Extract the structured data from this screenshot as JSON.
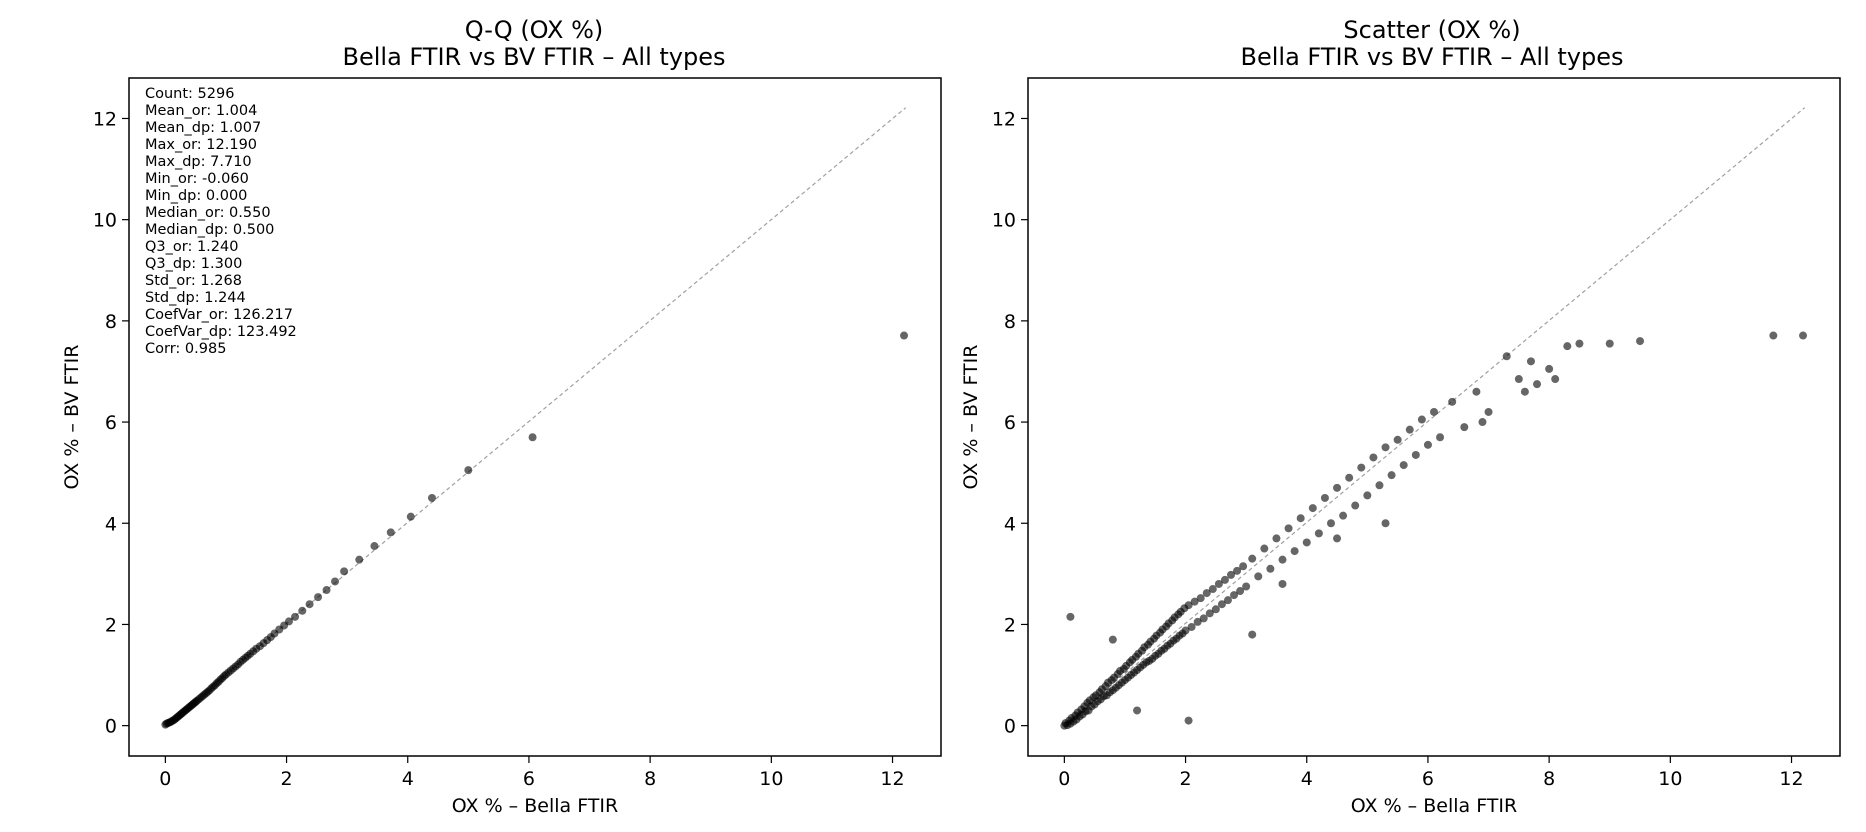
{
  "chart_data": [
    {
      "type": "scatter",
      "title": "Q-Q (OX %)",
      "subtitle": "Bella FTIR vs BV FTIR – All types",
      "xlabel": "OX % – Bella FTIR",
      "ylabel": "OX % – BV FTIR",
      "xlim": [
        -0.6,
        12.8
      ],
      "ylim": [
        -0.6,
        12.8
      ],
      "xticks": [
        0,
        2,
        4,
        6,
        8,
        10,
        12
      ],
      "yticks": [
        0,
        2,
        4,
        6,
        8,
        10,
        12
      ],
      "grid": false,
      "reference_line": {
        "from": [
          0,
          0
        ],
        "to": [
          12.19,
          12.19
        ],
        "style": "dashed",
        "color": "#a0a0a0"
      },
      "stats_box": [
        "Count: 5296",
        "Mean_or: 1.004",
        "Mean_dp: 1.007",
        "Max_or: 12.190",
        "Max_dp: 7.710",
        "Min_or: -0.060",
        "Min_dp: 0.000",
        "Median_or: 0.550",
        "Median_dp: 0.500",
        "Q3_or: 1.240",
        "Q3_dp: 1.300",
        "Std_or: 1.268",
        "Std_dp: 1.244",
        "CoefVar_or: 126.217",
        "CoefVar_dp: 123.492",
        "Corr: 0.985"
      ],
      "point_color": "#000000",
      "point_alpha": 0.6,
      "points": [
        [
          0.0,
          0.02
        ],
        [
          0.02,
          0.04
        ],
        [
          0.04,
          0.05
        ],
        [
          0.06,
          0.06
        ],
        [
          0.08,
          0.07
        ],
        [
          0.1,
          0.08
        ],
        [
          0.12,
          0.1
        ],
        [
          0.14,
          0.11
        ],
        [
          0.16,
          0.13
        ],
        [
          0.18,
          0.15
        ],
        [
          0.2,
          0.17
        ],
        [
          0.22,
          0.19
        ],
        [
          0.24,
          0.21
        ],
        [
          0.26,
          0.23
        ],
        [
          0.28,
          0.25
        ],
        [
          0.3,
          0.27
        ],
        [
          0.32,
          0.29
        ],
        [
          0.34,
          0.31
        ],
        [
          0.36,
          0.33
        ],
        [
          0.38,
          0.35
        ],
        [
          0.4,
          0.37
        ],
        [
          0.42,
          0.39
        ],
        [
          0.44,
          0.41
        ],
        [
          0.46,
          0.43
        ],
        [
          0.48,
          0.45
        ],
        [
          0.5,
          0.47
        ],
        [
          0.52,
          0.49
        ],
        [
          0.55,
          0.52
        ],
        [
          0.58,
          0.55
        ],
        [
          0.61,
          0.58
        ],
        [
          0.64,
          0.61
        ],
        [
          0.67,
          0.64
        ],
        [
          0.7,
          0.67
        ],
        [
          0.73,
          0.7
        ],
        [
          0.76,
          0.74
        ],
        [
          0.79,
          0.77
        ],
        [
          0.82,
          0.8
        ],
        [
          0.85,
          0.84
        ],
        [
          0.88,
          0.87
        ],
        [
          0.91,
          0.91
        ],
        [
          0.94,
          0.94
        ],
        [
          0.97,
          0.98
        ],
        [
          1.0,
          1.01
        ],
        [
          1.04,
          1.05
        ],
        [
          1.08,
          1.09
        ],
        [
          1.12,
          1.13
        ],
        [
          1.16,
          1.17
        ],
        [
          1.2,
          1.21
        ],
        [
          1.24,
          1.26
        ],
        [
          1.28,
          1.3
        ],
        [
          1.32,
          1.34
        ],
        [
          1.36,
          1.38
        ],
        [
          1.4,
          1.42
        ],
        [
          1.45,
          1.47
        ],
        [
          1.5,
          1.52
        ],
        [
          1.56,
          1.57
        ],
        [
          1.62,
          1.63
        ],
        [
          1.68,
          1.69
        ],
        [
          1.74,
          1.75
        ],
        [
          1.8,
          1.82
        ],
        [
          1.88,
          1.9
        ],
        [
          1.96,
          1.98
        ],
        [
          2.04,
          2.06
        ],
        [
          2.14,
          2.15
        ],
        [
          2.26,
          2.27
        ],
        [
          2.38,
          2.4
        ],
        [
          2.52,
          2.54
        ],
        [
          2.66,
          2.68
        ],
        [
          2.8,
          2.85
        ],
        [
          2.95,
          3.05
        ],
        [
          3.2,
          3.28
        ],
        [
          3.45,
          3.55
        ],
        [
          3.72,
          3.82
        ],
        [
          4.05,
          4.13
        ],
        [
          4.4,
          4.5
        ],
        [
          5.0,
          5.05
        ],
        [
          6.06,
          5.7
        ],
        [
          12.19,
          7.71
        ]
      ]
    },
    {
      "type": "scatter",
      "title": "Scatter (OX %)",
      "subtitle": "Bella FTIR vs BV FTIR – All types",
      "xlabel": "OX % – Bella FTIR",
      "ylabel": "OX % – BV FTIR",
      "xlim": [
        -0.6,
        12.8
      ],
      "ylim": [
        -0.6,
        12.8
      ],
      "xticks": [
        0,
        2,
        4,
        6,
        8,
        10,
        12
      ],
      "yticks": [
        0,
        2,
        4,
        6,
        8,
        10,
        12
      ],
      "grid": false,
      "reference_line": {
        "from": [
          0,
          0
        ],
        "to": [
          12.19,
          12.19
        ],
        "style": "dashed",
        "color": "#a0a0a0"
      },
      "point_color": "#000000",
      "point_alpha": 0.6,
      "n_points": 5296,
      "points": [
        [
          0.0,
          0.0
        ],
        [
          0.02,
          0.05
        ],
        [
          0.05,
          0.01
        ],
        [
          0.08,
          0.1
        ],
        [
          0.1,
          0.04
        ],
        [
          0.12,
          0.15
        ],
        [
          0.15,
          0.08
        ],
        [
          0.18,
          0.2
        ],
        [
          0.2,
          0.12
        ],
        [
          0.22,
          0.26
        ],
        [
          0.25,
          0.18
        ],
        [
          0.28,
          0.32
        ],
        [
          0.3,
          0.22
        ],
        [
          0.33,
          0.38
        ],
        [
          0.35,
          0.28
        ],
        [
          0.38,
          0.45
        ],
        [
          0.4,
          0.3
        ],
        [
          0.42,
          0.5
        ],
        [
          0.45,
          0.38
        ],
        [
          0.48,
          0.56
        ],
        [
          0.5,
          0.42
        ],
        [
          0.52,
          0.6
        ],
        [
          0.55,
          0.48
        ],
        [
          0.58,
          0.66
        ],
        [
          0.6,
          0.52
        ],
        [
          0.62,
          0.72
        ],
        [
          0.65,
          0.58
        ],
        [
          0.68,
          0.78
        ],
        [
          0.7,
          0.6
        ],
        [
          0.72,
          0.85
        ],
        [
          0.75,
          0.66
        ],
        [
          0.78,
          0.9
        ],
        [
          0.8,
          0.7
        ],
        [
          0.82,
          0.95
        ],
        [
          0.85,
          0.75
        ],
        [
          0.88,
          1.02
        ],
        [
          0.9,
          0.8
        ],
        [
          0.92,
          1.08
        ],
        [
          0.95,
          0.85
        ],
        [
          0.98,
          1.12
        ],
        [
          1.0,
          0.9
        ],
        [
          1.02,
          1.18
        ],
        [
          1.05,
          0.95
        ],
        [
          1.08,
          1.25
        ],
        [
          1.1,
          1.0
        ],
        [
          1.12,
          1.3
        ],
        [
          1.15,
          1.05
        ],
        [
          1.18,
          1.36
        ],
        [
          1.2,
          1.1
        ],
        [
          1.22,
          1.42
        ],
        [
          1.25,
          1.15
        ],
        [
          1.28,
          1.48
        ],
        [
          1.3,
          1.2
        ],
        [
          1.32,
          1.55
        ],
        [
          1.35,
          1.25
        ],
        [
          1.38,
          1.6
        ],
        [
          1.4,
          1.28
        ],
        [
          1.42,
          1.66
        ],
        [
          1.45,
          1.32
        ],
        [
          1.48,
          1.72
        ],
        [
          1.5,
          1.38
        ],
        [
          1.52,
          1.78
        ],
        [
          1.55,
          1.42
        ],
        [
          1.58,
          1.84
        ],
        [
          1.6,
          1.48
        ],
        [
          1.62,
          1.9
        ],
        [
          1.65,
          1.52
        ],
        [
          1.68,
          1.96
        ],
        [
          1.7,
          1.58
        ],
        [
          1.72,
          2.02
        ],
        [
          1.75,
          1.62
        ],
        [
          1.78,
          2.08
        ],
        [
          1.8,
          1.68
        ],
        [
          1.82,
          2.14
        ],
        [
          1.85,
          1.72
        ],
        [
          1.88,
          2.2
        ],
        [
          1.9,
          1.78
        ],
        [
          1.92,
          2.25
        ],
        [
          1.95,
          1.82
        ],
        [
          1.98,
          2.32
        ],
        [
          2.0,
          1.88
        ],
        [
          2.05,
          2.38
        ],
        [
          2.1,
          1.95
        ],
        [
          2.15,
          2.45
        ],
        [
          2.2,
          2.05
        ],
        [
          2.25,
          2.52
        ],
        [
          2.3,
          2.12
        ],
        [
          2.35,
          2.62
        ],
        [
          2.4,
          2.22
        ],
        [
          2.45,
          2.7
        ],
        [
          2.5,
          2.3
        ],
        [
          2.55,
          2.8
        ],
        [
          2.6,
          2.4
        ],
        [
          2.65,
          2.88
        ],
        [
          2.7,
          2.48
        ],
        [
          2.75,
          2.98
        ],
        [
          2.8,
          2.58
        ],
        [
          2.85,
          3.06
        ],
        [
          2.9,
          2.66
        ],
        [
          2.95,
          3.15
        ],
        [
          3.0,
          2.75
        ],
        [
          3.1,
          3.3
        ],
        [
          3.2,
          2.95
        ],
        [
          3.3,
          3.5
        ],
        [
          3.4,
          3.1
        ],
        [
          3.5,
          3.7
        ],
        [
          3.6,
          3.28
        ],
        [
          3.7,
          3.9
        ],
        [
          3.8,
          3.45
        ],
        [
          3.9,
          4.1
        ],
        [
          4.0,
          3.62
        ],
        [
          4.1,
          4.3
        ],
        [
          4.2,
          3.8
        ],
        [
          4.3,
          4.5
        ],
        [
          4.4,
          4.0
        ],
        [
          4.5,
          4.7
        ],
        [
          4.6,
          4.15
        ],
        [
          4.7,
          4.9
        ],
        [
          4.8,
          4.35
        ],
        [
          4.9,
          5.1
        ],
        [
          5.0,
          4.55
        ],
        [
          5.1,
          5.3
        ],
        [
          5.2,
          4.75
        ],
        [
          5.3,
          5.5
        ],
        [
          5.4,
          4.95
        ],
        [
          5.5,
          5.65
        ],
        [
          5.6,
          5.15
        ],
        [
          5.7,
          5.85
        ],
        [
          5.8,
          5.35
        ],
        [
          5.9,
          6.05
        ],
        [
          6.0,
          5.55
        ],
        [
          6.1,
          6.2
        ],
        [
          6.2,
          5.7
        ],
        [
          6.4,
          6.4
        ],
        [
          6.6,
          5.9
        ],
        [
          6.8,
          6.6
        ],
        [
          7.0,
          6.2
        ],
        [
          7.3,
          7.3
        ],
        [
          7.5,
          6.85
        ],
        [
          7.7,
          7.2
        ],
        [
          7.8,
          6.75
        ],
        [
          8.0,
          7.05
        ],
        [
          8.3,
          7.5
        ],
        [
          8.5,
          7.55
        ],
        [
          8.1,
          6.85
        ],
        [
          9.0,
          7.55
        ],
        [
          9.5,
          7.6
        ],
        [
          11.7,
          7.71
        ],
        [
          12.19,
          7.71
        ],
        [
          0.1,
          2.15
        ],
        [
          2.05,
          0.1
        ],
        [
          1.2,
          0.3
        ],
        [
          0.8,
          1.7
        ],
        [
          3.1,
          1.8
        ],
        [
          3.6,
          2.8
        ],
        [
          4.5,
          3.7
        ],
        [
          5.3,
          4.0
        ],
        [
          6.9,
          6.0
        ],
        [
          7.6,
          6.6
        ]
      ]
    }
  ]
}
